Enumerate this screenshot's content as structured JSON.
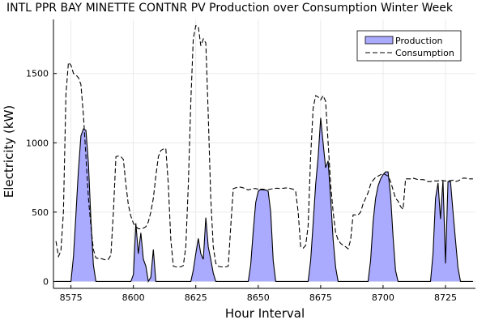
{
  "chart_data": {
    "type": "area",
    "title": "INTL PPR BAY MINETTE CONTNR PV Production over Consumption Winter Week",
    "xlabel": "Hour Interval",
    "ylabel": "Electricity (kW)",
    "xlim": [
      8568,
      8737
    ],
    "ylim": [
      -50,
      1890
    ],
    "x_ticks": [
      8575,
      8600,
      8625,
      8650,
      8675,
      8700,
      8725
    ],
    "y_ticks": [
      0,
      500,
      1000,
      1500
    ],
    "grid": true,
    "legend_position": "top-right",
    "colors": {
      "production_fill": "#aaaaff",
      "production_line": "#000000",
      "consumption_line": "#000000"
    },
    "series": [
      {
        "name": "Production",
        "style": "filled-area",
        "points": [
          [
            8569,
            0
          ],
          [
            8574,
            0
          ],
          [
            8575,
            0
          ],
          [
            8576,
            180
          ],
          [
            8577,
            480
          ],
          [
            8578,
            800
          ],
          [
            8579,
            1050
          ],
          [
            8580,
            1100
          ],
          [
            8581,
            1090
          ],
          [
            8582,
            850
          ],
          [
            8583,
            450
          ],
          [
            8584,
            120
          ],
          [
            8585,
            0
          ],
          [
            8599,
            0
          ],
          [
            8600,
            50
          ],
          [
            8601,
            420
          ],
          [
            8602,
            200
          ],
          [
            8603,
            350
          ],
          [
            8604,
            160
          ],
          [
            8605,
            110
          ],
          [
            8606,
            0
          ],
          [
            8607,
            30
          ],
          [
            8608,
            230
          ],
          [
            8609,
            0
          ],
          [
            8623,
            0
          ],
          [
            8624,
            80
          ],
          [
            8625,
            200
          ],
          [
            8626,
            310
          ],
          [
            8627,
            200
          ],
          [
            8628,
            160
          ],
          [
            8629,
            460
          ],
          [
            8630,
            250
          ],
          [
            8631,
            160
          ],
          [
            8632,
            60
          ],
          [
            8633,
            0
          ],
          [
            8646,
            0
          ],
          [
            8647,
            120
          ],
          [
            8648,
            360
          ],
          [
            8649,
            570
          ],
          [
            8650,
            650
          ],
          [
            8651,
            665
          ],
          [
            8652,
            665
          ],
          [
            8653,
            660
          ],
          [
            8654,
            650
          ],
          [
            8655,
            500
          ],
          [
            8656,
            150
          ],
          [
            8657,
            0
          ],
          [
            8670,
            0
          ],
          [
            8671,
            150
          ],
          [
            8672,
            420
          ],
          [
            8673,
            700
          ],
          [
            8674,
            900
          ],
          [
            8675,
            1180
          ],
          [
            8676,
            1000
          ],
          [
            8677,
            820
          ],
          [
            8678,
            870
          ],
          [
            8679,
            600
          ],
          [
            8680,
            300
          ],
          [
            8681,
            100
          ],
          [
            8682,
            0
          ],
          [
            8694,
            0
          ],
          [
            8695,
            150
          ],
          [
            8696,
            430
          ],
          [
            8697,
            600
          ],
          [
            8698,
            690
          ],
          [
            8699,
            740
          ],
          [
            8700,
            770
          ],
          [
            8701,
            790
          ],
          [
            8702,
            790
          ],
          [
            8703,
            620
          ],
          [
            8704,
            320
          ],
          [
            8705,
            80
          ],
          [
            8706,
            0
          ],
          [
            8719,
            0
          ],
          [
            8720,
            200
          ],
          [
            8721,
            600
          ],
          [
            8722,
            710
          ],
          [
            8723,
            450
          ],
          [
            8724,
            730
          ],
          [
            8725,
            130
          ],
          [
            8726,
            720
          ],
          [
            8727,
            720
          ],
          [
            8728,
            500
          ],
          [
            8729,
            300
          ],
          [
            8730,
            100
          ],
          [
            8731,
            0
          ],
          [
            8736,
            0
          ]
        ]
      },
      {
        "name": "Consumption",
        "style": "dashed-line",
        "points": [
          [
            8569,
            290
          ],
          [
            8570,
            180
          ],
          [
            8571,
            220
          ],
          [
            8572,
            500
          ],
          [
            8573,
            1350
          ],
          [
            8574,
            1580
          ],
          [
            8575,
            1560
          ],
          [
            8576,
            1500
          ],
          [
            8577,
            1490
          ],
          [
            8578,
            1470
          ],
          [
            8579,
            1420
          ],
          [
            8580,
            1200
          ],
          [
            8581,
            900
          ],
          [
            8582,
            600
          ],
          [
            8583,
            400
          ],
          [
            8584,
            230
          ],
          [
            8585,
            170
          ],
          [
            8586,
            165
          ],
          [
            8587,
            165
          ],
          [
            8588,
            160
          ],
          [
            8589,
            155
          ],
          [
            8590,
            160
          ],
          [
            8591,
            190
          ],
          [
            8592,
            500
          ],
          [
            8593,
            900
          ],
          [
            8594,
            905
          ],
          [
            8595,
            900
          ],
          [
            8596,
            880
          ],
          [
            8597,
            700
          ],
          [
            8598,
            550
          ],
          [
            8599,
            470
          ],
          [
            8600,
            420
          ],
          [
            8601,
            395
          ],
          [
            8602,
            380
          ],
          [
            8603,
            380
          ],
          [
            8604,
            385
          ],
          [
            8605,
            395
          ],
          [
            8606,
            430
          ],
          [
            8607,
            500
          ],
          [
            8608,
            600
          ],
          [
            8609,
            760
          ],
          [
            8610,
            900
          ],
          [
            8611,
            945
          ],
          [
            8612,
            955
          ],
          [
            8613,
            960
          ],
          [
            8614,
            700
          ],
          [
            8615,
            300
          ],
          [
            8616,
            110
          ],
          [
            8617,
            105
          ],
          [
            8618,
            105
          ],
          [
            8619,
            105
          ],
          [
            8620,
            115
          ],
          [
            8621,
            250
          ],
          [
            8622,
            700
          ],
          [
            8623,
            1300
          ],
          [
            8624,
            1750
          ],
          [
            8625,
            1845
          ],
          [
            8626,
            1840
          ],
          [
            8627,
            1700
          ],
          [
            8628,
            1750
          ],
          [
            8629,
            1720
          ],
          [
            8630,
            1200
          ],
          [
            8631,
            600
          ],
          [
            8632,
            250
          ],
          [
            8633,
            130
          ],
          [
            8634,
            110
          ],
          [
            8635,
            105
          ],
          [
            8636,
            105
          ],
          [
            8637,
            105
          ],
          [
            8638,
            110
          ],
          [
            8639,
            400
          ],
          [
            8640,
            670
          ],
          [
            8641,
            675
          ],
          [
            8642,
            680
          ],
          [
            8643,
            680
          ],
          [
            8644,
            675
          ],
          [
            8645,
            665
          ],
          [
            8646,
            660
          ],
          [
            8647,
            665
          ],
          [
            8648,
            670
          ],
          [
            8649,
            670
          ],
          [
            8650,
            665
          ],
          [
            8651,
            660
          ],
          [
            8652,
            660
          ],
          [
            8653,
            658
          ],
          [
            8654,
            662
          ],
          [
            8655,
            666
          ],
          [
            8656,
            670
          ],
          [
            8657,
            672
          ],
          [
            8658,
            672
          ],
          [
            8659,
            670
          ],
          [
            8660,
            672
          ],
          [
            8661,
            674
          ],
          [
            8662,
            675
          ],
          [
            8663,
            670
          ],
          [
            8664,
            665
          ],
          [
            8665,
            650
          ],
          [
            8666,
            500
          ],
          [
            8667,
            250
          ],
          [
            8668,
            240
          ],
          [
            8669,
            260
          ],
          [
            8670,
            400
          ],
          [
            8671,
            900
          ],
          [
            8672,
            1250
          ],
          [
            8673,
            1340
          ],
          [
            8674,
            1330
          ],
          [
            8675,
            1310
          ],
          [
            8676,
            1340
          ],
          [
            8677,
            1300
          ],
          [
            8678,
            1000
          ],
          [
            8679,
            700
          ],
          [
            8680,
            500
          ],
          [
            8681,
            350
          ],
          [
            8682,
            300
          ],
          [
            8683,
            275
          ],
          [
            8684,
            260
          ],
          [
            8685,
            250
          ],
          [
            8686,
            235
          ],
          [
            8687,
            300
          ],
          [
            8688,
            480
          ],
          [
            8689,
            480
          ],
          [
            8690,
            480
          ],
          [
            8691,
            500
          ],
          [
            8692,
            560
          ],
          [
            8693,
            600
          ],
          [
            8694,
            640
          ],
          [
            8695,
            700
          ],
          [
            8696,
            730
          ],
          [
            8697,
            750
          ],
          [
            8698,
            760
          ],
          [
            8699,
            770
          ],
          [
            8700,
            780
          ],
          [
            8701,
            770
          ],
          [
            8702,
            760
          ],
          [
            8703,
            720
          ],
          [
            8704,
            660
          ],
          [
            8705,
            600
          ],
          [
            8706,
            580
          ],
          [
            8707,
            540
          ],
          [
            8708,
            520
          ],
          [
            8709,
            740
          ],
          [
            8710,
            740
          ],
          [
            8711,
            740
          ],
          [
            8712,
            745
          ],
          [
            8713,
            740
          ],
          [
            8714,
            735
          ],
          [
            8715,
            735
          ],
          [
            8716,
            735
          ],
          [
            8717,
            730
          ],
          [
            8718,
            720
          ],
          [
            8719,
            720
          ],
          [
            8720,
            725
          ],
          [
            8721,
            725
          ],
          [
            8722,
            725
          ],
          [
            8723,
            730
          ],
          [
            8724,
            728
          ],
          [
            8725,
            725
          ],
          [
            8726,
            725
          ],
          [
            8727,
            728
          ],
          [
            8728,
            730
          ],
          [
            8729,
            720
          ],
          [
            8730,
            725
          ],
          [
            8731,
            735
          ],
          [
            8732,
            745
          ],
          [
            8733,
            745
          ],
          [
            8734,
            740
          ],
          [
            8735,
            740
          ],
          [
            8736,
            740
          ]
        ]
      }
    ]
  }
}
